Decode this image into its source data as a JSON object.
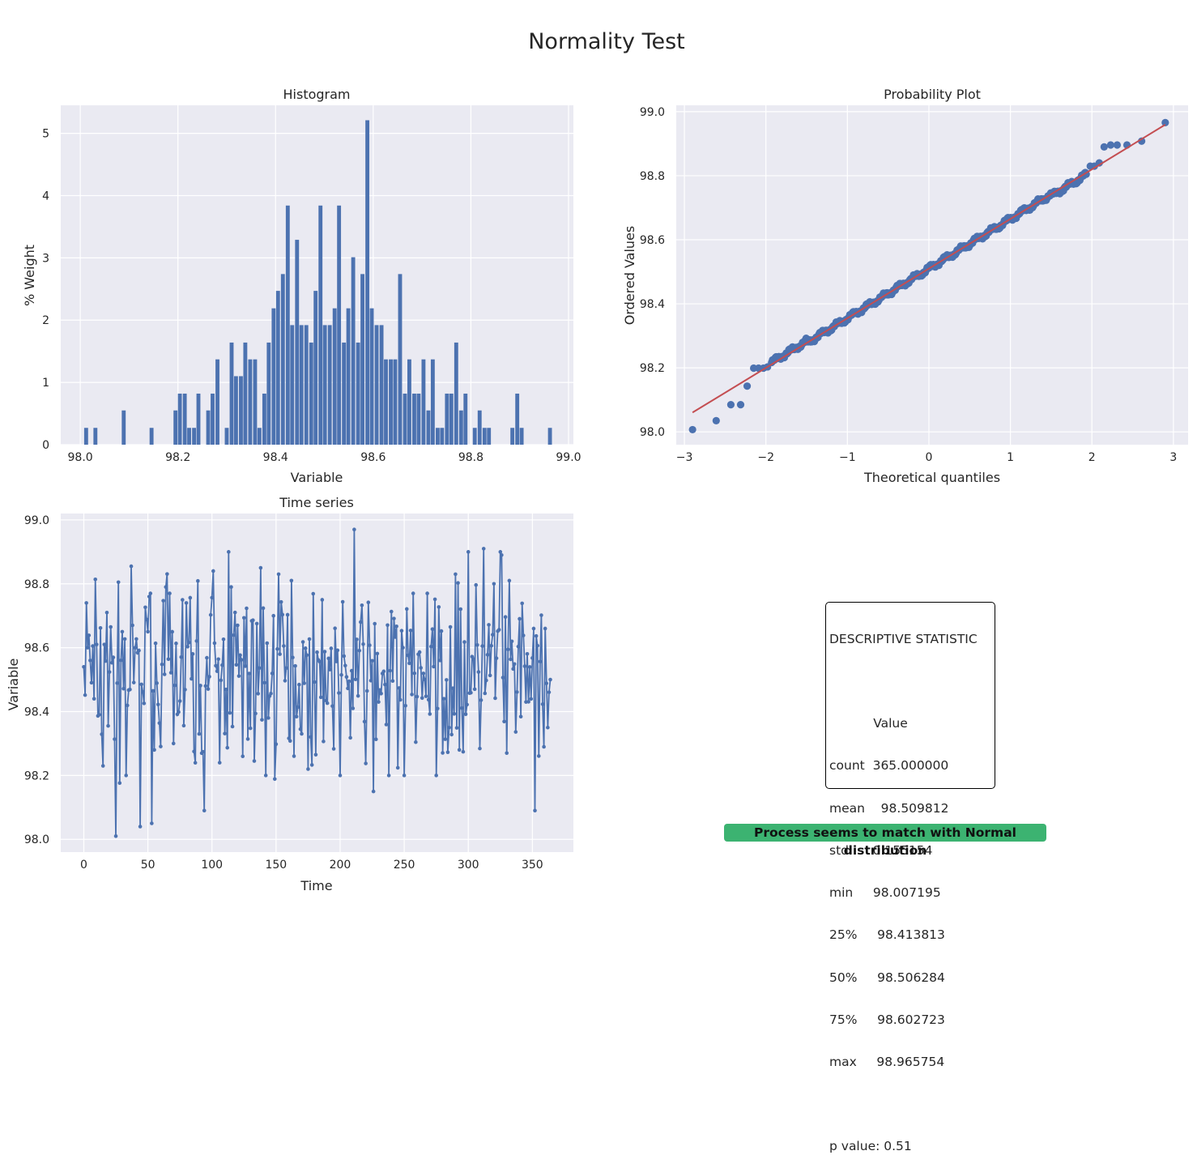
{
  "figure_title": "Normality Test",
  "colors": {
    "axes_bg": "#eaeaf2",
    "grid": "#ffffff",
    "series": "#4c72b0",
    "fit_line": "#c44e52",
    "badge": "#3cb371"
  },
  "chart_data": [
    {
      "type": "bar",
      "title": "Histogram",
      "xlabel": "Variable",
      "ylabel": "% Weight",
      "xlim": [
        97.96,
        99.01
      ],
      "ylim": [
        0,
        5.45
      ],
      "xticks": [
        "98.0",
        "98.2",
        "98.4",
        "98.6",
        "98.8",
        "99.0"
      ],
      "yticks": [
        "0",
        "1",
        "2",
        "3",
        "4",
        "5"
      ],
      "bin_width": 0.00959,
      "bars": [
        [
          98.012,
          0.27
        ],
        [
          98.031,
          0.27
        ],
        [
          98.089,
          0.55
        ],
        [
          98.146,
          0.27
        ],
        [
          98.195,
          0.55
        ],
        [
          98.204,
          0.82
        ],
        [
          98.214,
          0.82
        ],
        [
          98.223,
          0.27
        ],
        [
          98.233,
          0.27
        ],
        [
          98.242,
          0.82
        ],
        [
          98.262,
          0.55
        ],
        [
          98.271,
          0.82
        ],
        [
          98.281,
          1.37
        ],
        [
          98.3,
          0.27
        ],
        [
          98.31,
          1.64
        ],
        [
          98.319,
          1.1
        ],
        [
          98.329,
          1.1
        ],
        [
          98.338,
          1.64
        ],
        [
          98.348,
          1.37
        ],
        [
          98.358,
          1.37
        ],
        [
          98.367,
          0.27
        ],
        [
          98.377,
          0.82
        ],
        [
          98.386,
          1.64
        ],
        [
          98.396,
          2.19
        ],
        [
          98.405,
          2.47
        ],
        [
          98.415,
          2.74
        ],
        [
          98.425,
          3.84
        ],
        [
          98.434,
          1.92
        ],
        [
          98.444,
          3.29
        ],
        [
          98.453,
          1.92
        ],
        [
          98.463,
          1.92
        ],
        [
          98.473,
          1.64
        ],
        [
          98.482,
          2.47
        ],
        [
          98.492,
          3.84
        ],
        [
          98.501,
          1.92
        ],
        [
          98.511,
          1.92
        ],
        [
          98.521,
          2.19
        ],
        [
          98.53,
          3.84
        ],
        [
          98.54,
          1.64
        ],
        [
          98.549,
          2.19
        ],
        [
          98.559,
          3.01
        ],
        [
          98.569,
          1.64
        ],
        [
          98.578,
          2.74
        ],
        [
          98.588,
          5.21
        ],
        [
          98.597,
          2.19
        ],
        [
          98.607,
          1.92
        ],
        [
          98.617,
          1.92
        ],
        [
          98.626,
          1.37
        ],
        [
          98.636,
          1.37
        ],
        [
          98.645,
          1.37
        ],
        [
          98.655,
          2.74
        ],
        [
          98.665,
          0.82
        ],
        [
          98.674,
          1.37
        ],
        [
          98.684,
          0.82
        ],
        [
          98.693,
          0.82
        ],
        [
          98.703,
          1.37
        ],
        [
          98.713,
          0.55
        ],
        [
          98.722,
          1.37
        ],
        [
          98.732,
          0.27
        ],
        [
          98.741,
          0.27
        ],
        [
          98.751,
          0.82
        ],
        [
          98.76,
          0.82
        ],
        [
          98.77,
          1.64
        ],
        [
          98.78,
          0.55
        ],
        [
          98.789,
          0.82
        ],
        [
          98.808,
          0.27
        ],
        [
          98.818,
          0.55
        ],
        [
          98.828,
          0.27
        ],
        [
          98.837,
          0.27
        ],
        [
          98.885,
          0.27
        ],
        [
          98.895,
          0.82
        ],
        [
          98.904,
          0.27
        ],
        [
          98.962,
          0.27
        ]
      ]
    },
    {
      "type": "scatter",
      "title": "Probability Plot",
      "xlabel": "Theoretical quantiles",
      "ylabel": "Ordered Values",
      "xlim": [
        -3.1,
        3.18
      ],
      "ylim": [
        97.96,
        99.02
      ],
      "xticks": [
        "−3",
        "−2",
        "−1",
        "0",
        "1",
        "2",
        "3"
      ],
      "yticks": [
        "98.0",
        "98.2",
        "98.4",
        "98.6",
        "98.8",
        "99.0"
      ],
      "fit_line": {
        "slope": 0.155,
        "intercept": 98.51
      },
      "low_tail": [
        [
          -2.9,
          98.007
        ],
        [
          -2.61,
          98.035
        ],
        [
          -2.43,
          98.085
        ],
        [
          -2.31,
          98.085
        ],
        [
          -2.23,
          98.143
        ],
        [
          -2.15,
          98.199
        ],
        [
          -2.09,
          98.199
        ],
        [
          -2.03,
          98.199
        ],
        [
          -1.98,
          98.203
        ]
      ],
      "high_tail": [
        [
          1.98,
          98.83
        ],
        [
          2.03,
          98.83
        ],
        [
          2.09,
          98.84
        ],
        [
          2.15,
          98.89
        ],
        [
          2.23,
          98.896
        ],
        [
          2.31,
          98.896
        ],
        [
          2.43,
          98.896
        ],
        [
          2.61,
          98.908
        ],
        [
          2.9,
          98.966
        ]
      ]
    },
    {
      "type": "line",
      "title": "Time series",
      "xlabel": "Time",
      "ylabel": "Variable",
      "xlim": [
        -18,
        382
      ],
      "ylim": [
        97.96,
        99.02
      ],
      "xticks": [
        "0",
        "50",
        "100",
        "150",
        "200",
        "250",
        "300",
        "350"
      ],
      "yticks": [
        "98.0",
        "98.2",
        "98.4",
        "98.6",
        "98.8",
        "99.0"
      ],
      "n_points": 365,
      "markers": [
        [
          0,
          98.54
        ],
        [
          2,
          98.74
        ],
        [
          3,
          98.6
        ],
        [
          5,
          98.56
        ],
        [
          8,
          98.44
        ],
        [
          10,
          98.61
        ],
        [
          12,
          98.39
        ],
        [
          15,
          98.23
        ],
        [
          16,
          98.61
        ],
        [
          18,
          98.71
        ],
        [
          25,
          98.01
        ],
        [
          30,
          98.65
        ],
        [
          33,
          98.2
        ],
        [
          38,
          98.67
        ],
        [
          44,
          98.04
        ],
        [
          50,
          98.65
        ],
        [
          51,
          98.76
        ],
        [
          52,
          98.77
        ],
        [
          55,
          98.28
        ],
        [
          64,
          98.79
        ],
        [
          70,
          98.3
        ],
        [
          80,
          98.74
        ],
        [
          90,
          98.33
        ],
        [
          94,
          98.09
        ],
        [
          101,
          98.84
        ],
        [
          106,
          98.24
        ],
        [
          113,
          98.9
        ],
        [
          115,
          98.79
        ],
        [
          120,
          98.67
        ],
        [
          124,
          98.26
        ],
        [
          138,
          98.85
        ],
        [
          142,
          98.2
        ],
        [
          152,
          98.83
        ],
        [
          162,
          98.81
        ],
        [
          175,
          98.22
        ],
        [
          186,
          98.75
        ],
        [
          200,
          98.2
        ],
        [
          210,
          98.41
        ],
        [
          211,
          98.97
        ],
        [
          226,
          98.15
        ],
        [
          230,
          98.43
        ],
        [
          238,
          98.2
        ],
        [
          250,
          98.2
        ],
        [
          257,
          98.77
        ],
        [
          268,
          98.77
        ],
        [
          275,
          98.2
        ],
        [
          290,
          98.83
        ],
        [
          293,
          98.28
        ],
        [
          300,
          98.9
        ],
        [
          305,
          98.47
        ],
        [
          312,
          98.91
        ],
        [
          320,
          98.8
        ],
        [
          325,
          98.9
        ],
        [
          326,
          98.89
        ],
        [
          330,
          98.27
        ],
        [
          345,
          98.43
        ],
        [
          351,
          98.66
        ],
        [
          352,
          98.09
        ],
        [
          360,
          98.66
        ],
        [
          362,
          98.35
        ],
        [
          364,
          98.5
        ]
      ]
    }
  ],
  "stats_box": {
    "title": "DESCRIPTIVE STATISTIC",
    "header": "           Value",
    "rows": [
      "count  365.000000",
      "mean    98.509812",
      "std      0.155154",
      "min     98.007195",
      "25%     98.413813",
      "50%     98.506284",
      "75%     98.602723",
      "max     98.965754"
    ],
    "pvalue": "p value: 0.51"
  },
  "verdict": "Process seems to match with Normal distribution"
}
